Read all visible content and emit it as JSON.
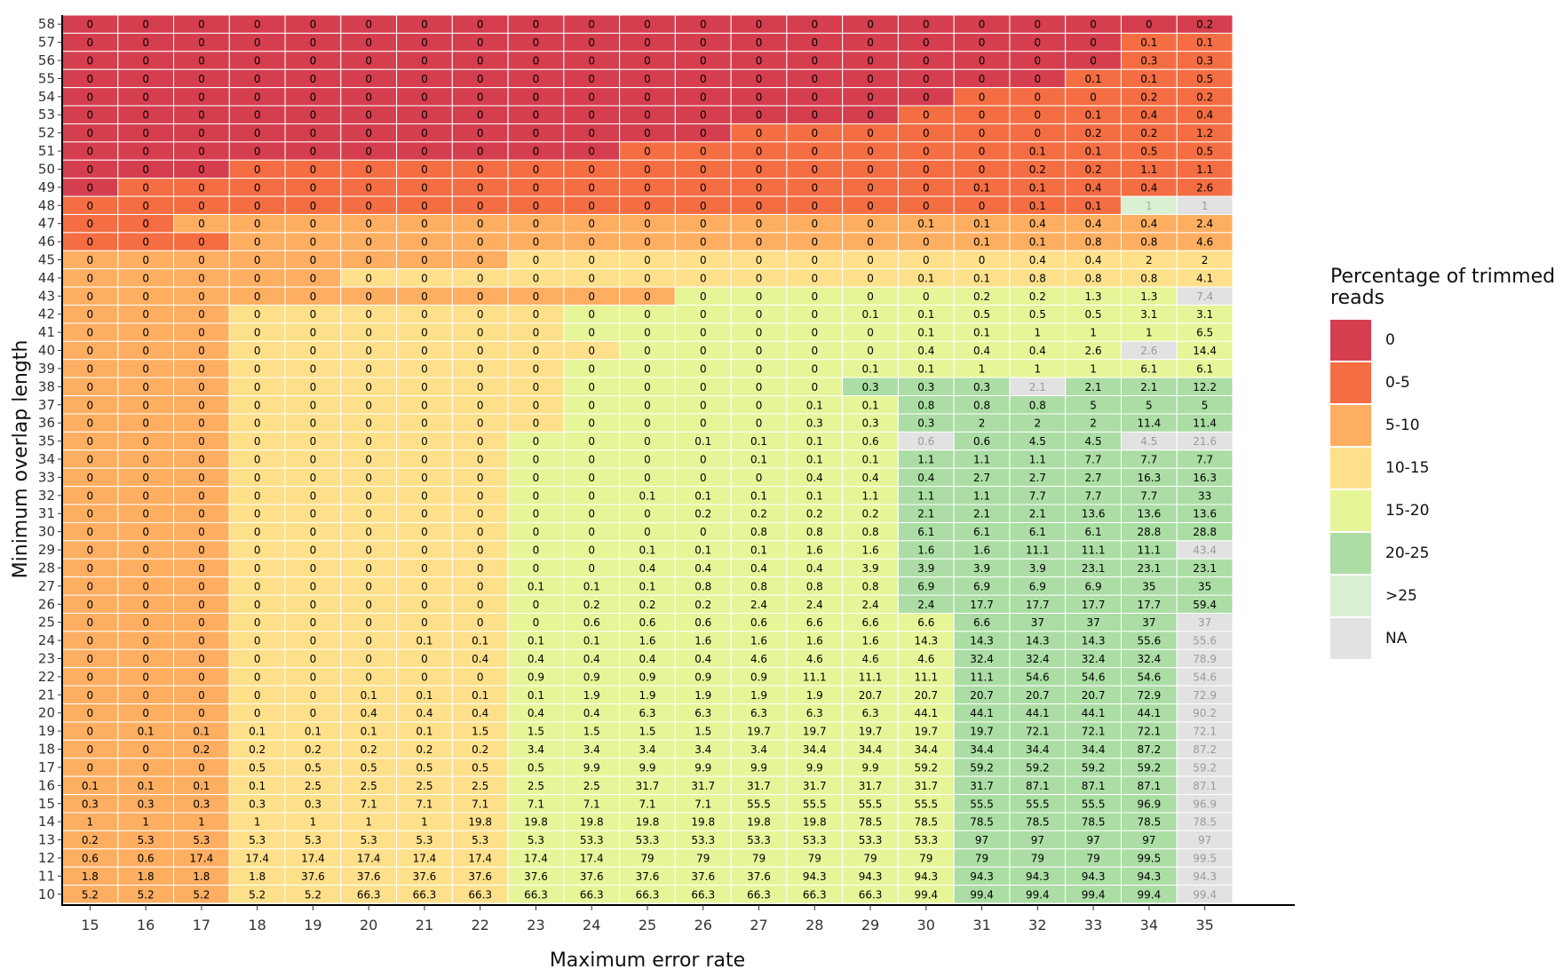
{
  "chart_data": {
    "type": "heatmap",
    "xlabel": "Maximum error rate",
    "ylabel": "Minimum overlap length",
    "x": [
      15,
      16,
      17,
      18,
      19,
      20,
      21,
      22,
      23,
      24,
      25,
      26,
      27,
      28,
      29,
      30,
      31,
      32,
      33,
      34,
      35
    ],
    "y": [
      58,
      57,
      56,
      55,
      54,
      53,
      52,
      51,
      50,
      49,
      48,
      47,
      46,
      45,
      44,
      43,
      42,
      41,
      40,
      39,
      38,
      37,
      36,
      35,
      34,
      33,
      32,
      31,
      30,
      29,
      28,
      27,
      26,
      25,
      24,
      23,
      22,
      21,
      20,
      19,
      18,
      17,
      16,
      15,
      14,
      13,
      12,
      11,
      10
    ],
    "value_grid": [
      [
        "0",
        "0",
        "0",
        "0",
        "0",
        "0",
        "0",
        "0",
        "0",
        "0",
        "0",
        "0",
        "0",
        "0",
        "0",
        "0",
        "0",
        "0",
        "0",
        "0",
        "0.2"
      ],
      [
        "0",
        "0",
        "0",
        "0",
        "0",
        "0",
        "0",
        "0",
        "0",
        "0",
        "0",
        "0",
        "0",
        "0",
        "0",
        "0",
        "0",
        "0",
        "0",
        "0.1",
        "0.1"
      ],
      [
        "0",
        "0",
        "0",
        "0",
        "0",
        "0",
        "0",
        "0",
        "0",
        "0",
        "0",
        "0",
        "0",
        "0",
        "0",
        "0",
        "0",
        "0",
        "0",
        "0.3",
        "0.3"
      ],
      [
        "0",
        "0",
        "0",
        "0",
        "0",
        "0",
        "0",
        "0",
        "0",
        "0",
        "0",
        "0",
        "0",
        "0",
        "0",
        "0",
        "0",
        "0",
        "0.1",
        "0.1",
        "0.5"
      ],
      [
        "0",
        "0",
        "0",
        "0",
        "0",
        "0",
        "0",
        "0",
        "0",
        "0",
        "0",
        "0",
        "0",
        "0",
        "0",
        "0",
        "0",
        "0",
        "0",
        "0.2",
        "0.2"
      ],
      [
        "0",
        "0",
        "0",
        "0",
        "0",
        "0",
        "0",
        "0",
        "0",
        "0",
        "0",
        "0",
        "0",
        "0",
        "0",
        "0",
        "0",
        "0",
        "0.1",
        "0.4",
        "0.4"
      ],
      [
        "0",
        "0",
        "0",
        "0",
        "0",
        "0",
        "0",
        "0",
        "0",
        "0",
        "0",
        "0",
        "0",
        "0",
        "0",
        "0",
        "0",
        "0",
        "0.2",
        "0.2",
        "1.2"
      ],
      [
        "0",
        "0",
        "0",
        "0",
        "0",
        "0",
        "0",
        "0",
        "0",
        "0",
        "0",
        "0",
        "0",
        "0",
        "0",
        "0",
        "0",
        "0.1",
        "0.1",
        "0.5",
        "0.5"
      ],
      [
        "0",
        "0",
        "0",
        "0",
        "0",
        "0",
        "0",
        "0",
        "0",
        "0",
        "0",
        "0",
        "0",
        "0",
        "0",
        "0",
        "0",
        "0.2",
        "0.2",
        "1.1",
        "1.1"
      ],
      [
        "0",
        "0",
        "0",
        "0",
        "0",
        "0",
        "0",
        "0",
        "0",
        "0",
        "0",
        "0",
        "0",
        "0",
        "0",
        "0",
        "0.1",
        "0.1",
        "0.4",
        "0.4",
        "2.6"
      ],
      [
        "0",
        "0",
        "0",
        "0",
        "0",
        "0",
        "0",
        "0",
        "0",
        "0",
        "0",
        "0",
        "0",
        "0",
        "0",
        "0",
        "0",
        "0.1",
        "0.1",
        "1",
        "1"
      ],
      [
        "0",
        "0",
        "0",
        "0",
        "0",
        "0",
        "0",
        "0",
        "0",
        "0",
        "0",
        "0",
        "0",
        "0",
        "0",
        "0.1",
        "0.1",
        "0.4",
        "0.4",
        "0.4",
        "2.4"
      ],
      [
        "0",
        "0",
        "0",
        "0",
        "0",
        "0",
        "0",
        "0",
        "0",
        "0",
        "0",
        "0",
        "0",
        "0",
        "0",
        "0",
        "0.1",
        "0.1",
        "0.8",
        "0.8",
        "4.6"
      ],
      [
        "0",
        "0",
        "0",
        "0",
        "0",
        "0",
        "0",
        "0",
        "0",
        "0",
        "0",
        "0",
        "0",
        "0",
        "0",
        "0",
        "0",
        "0.4",
        "0.4",
        "2",
        "2"
      ],
      [
        "0",
        "0",
        "0",
        "0",
        "0",
        "0",
        "0",
        "0",
        "0",
        "0",
        "0",
        "0",
        "0",
        "0",
        "0",
        "0.1",
        "0.1",
        "0.8",
        "0.8",
        "0.8",
        "4.1"
      ],
      [
        "0",
        "0",
        "0",
        "0",
        "0",
        "0",
        "0",
        "0",
        "0",
        "0",
        "0",
        "0",
        "0",
        "0",
        "0",
        "0",
        "0.2",
        "0.2",
        "1.3",
        "1.3",
        "7.4"
      ],
      [
        "0",
        "0",
        "0",
        "0",
        "0",
        "0",
        "0",
        "0",
        "0",
        "0",
        "0",
        "0",
        "0",
        "0",
        "0.1",
        "0.1",
        "0.5",
        "0.5",
        "0.5",
        "3.1",
        "3.1"
      ],
      [
        "0",
        "0",
        "0",
        "0",
        "0",
        "0",
        "0",
        "0",
        "0",
        "0",
        "0",
        "0",
        "0",
        "0",
        "0",
        "0.1",
        "0.1",
        "1",
        "1",
        "1",
        "6.5"
      ],
      [
        "0",
        "0",
        "0",
        "0",
        "0",
        "0",
        "0",
        "0",
        "0",
        "0",
        "0",
        "0",
        "0",
        "0",
        "0",
        "0.4",
        "0.4",
        "0.4",
        "2.6",
        "2.6",
        "14.4"
      ],
      [
        "0",
        "0",
        "0",
        "0",
        "0",
        "0",
        "0",
        "0",
        "0",
        "0",
        "0",
        "0",
        "0",
        "0",
        "0.1",
        "0.1",
        "1",
        "1",
        "1",
        "6.1",
        "6.1"
      ],
      [
        "0",
        "0",
        "0",
        "0",
        "0",
        "0",
        "0",
        "0",
        "0",
        "0",
        "0",
        "0",
        "0",
        "0",
        "0.3",
        "0.3",
        "0.3",
        "2.1",
        "2.1",
        "2.1",
        "12.2"
      ],
      [
        "0",
        "0",
        "0",
        "0",
        "0",
        "0",
        "0",
        "0",
        "0",
        "0",
        "0",
        "0",
        "0",
        "0.1",
        "0.1",
        "0.8",
        "0.8",
        "0.8",
        "5",
        "5",
        "5"
      ],
      [
        "0",
        "0",
        "0",
        "0",
        "0",
        "0",
        "0",
        "0",
        "0",
        "0",
        "0",
        "0",
        "0",
        "0.3",
        "0.3",
        "0.3",
        "2",
        "2",
        "2",
        "11.4",
        "11.4"
      ],
      [
        "0",
        "0",
        "0",
        "0",
        "0",
        "0",
        "0",
        "0",
        "0",
        "0",
        "0",
        "0.1",
        "0.1",
        "0.1",
        "0.6",
        "0.6",
        "0.6",
        "4.5",
        "4.5",
        "4.5",
        "21.6"
      ],
      [
        "0",
        "0",
        "0",
        "0",
        "0",
        "0",
        "0",
        "0",
        "0",
        "0",
        "0",
        "0",
        "0.1",
        "0.1",
        "0.1",
        "1.1",
        "1.1",
        "1.1",
        "7.7",
        "7.7",
        "7.7"
      ],
      [
        "0",
        "0",
        "0",
        "0",
        "0",
        "0",
        "0",
        "0",
        "0",
        "0",
        "0",
        "0",
        "0",
        "0.4",
        "0.4",
        "0.4",
        "2.7",
        "2.7",
        "2.7",
        "16.3",
        "16.3"
      ],
      [
        "0",
        "0",
        "0",
        "0",
        "0",
        "0",
        "0",
        "0",
        "0",
        "0",
        "0.1",
        "0.1",
        "0.1",
        "0.1",
        "1.1",
        "1.1",
        "1.1",
        "7.7",
        "7.7",
        "7.7",
        "33"
      ],
      [
        "0",
        "0",
        "0",
        "0",
        "0",
        "0",
        "0",
        "0",
        "0",
        "0",
        "0",
        "0.2",
        "0.2",
        "0.2",
        "0.2",
        "2.1",
        "2.1",
        "2.1",
        "13.6",
        "13.6",
        "13.6"
      ],
      [
        "0",
        "0",
        "0",
        "0",
        "0",
        "0",
        "0",
        "0",
        "0",
        "0",
        "0",
        "0",
        "0.8",
        "0.8",
        "0.8",
        "6.1",
        "6.1",
        "6.1",
        "6.1",
        "28.8",
        "28.8"
      ],
      [
        "0",
        "0",
        "0",
        "0",
        "0",
        "0",
        "0",
        "0",
        "0",
        "0",
        "0.1",
        "0.1",
        "0.1",
        "1.6",
        "1.6",
        "1.6",
        "1.6",
        "11.1",
        "11.1",
        "11.1",
        "43.4"
      ],
      [
        "0",
        "0",
        "0",
        "0",
        "0",
        "0",
        "0",
        "0",
        "0",
        "0",
        "0.4",
        "0.4",
        "0.4",
        "0.4",
        "3.9",
        "3.9",
        "3.9",
        "3.9",
        "23.1",
        "23.1",
        "23.1"
      ],
      [
        "0",
        "0",
        "0",
        "0",
        "0",
        "0",
        "0",
        "0",
        "0.1",
        "0.1",
        "0.1",
        "0.8",
        "0.8",
        "0.8",
        "0.8",
        "6.9",
        "6.9",
        "6.9",
        "6.9",
        "35",
        "35"
      ],
      [
        "0",
        "0",
        "0",
        "0",
        "0",
        "0",
        "0",
        "0",
        "0",
        "0.2",
        "0.2",
        "0.2",
        "2.4",
        "2.4",
        "2.4",
        "2.4",
        "17.7",
        "17.7",
        "17.7",
        "17.7",
        "59.4"
      ],
      [
        "0",
        "0",
        "0",
        "0",
        "0",
        "0",
        "0",
        "0",
        "0",
        "0.6",
        "0.6",
        "0.6",
        "0.6",
        "6.6",
        "6.6",
        "6.6",
        "6.6",
        "37",
        "37",
        "37",
        "37"
      ],
      [
        "0",
        "0",
        "0",
        "0",
        "0",
        "0",
        "0.1",
        "0.1",
        "0.1",
        "0.1",
        "1.6",
        "1.6",
        "1.6",
        "1.6",
        "1.6",
        "14.3",
        "14.3",
        "14.3",
        "14.3",
        "55.6",
        "55.6"
      ],
      [
        "0",
        "0",
        "0",
        "0",
        "0",
        "0",
        "0",
        "0.4",
        "0.4",
        "0.4",
        "0.4",
        "0.4",
        "4.6",
        "4.6",
        "4.6",
        "4.6",
        "32.4",
        "32.4",
        "32.4",
        "32.4",
        "78.9"
      ],
      [
        "0",
        "0",
        "0",
        "0",
        "0",
        "0",
        "0",
        "0",
        "0.9",
        "0.9",
        "0.9",
        "0.9",
        "0.9",
        "11.1",
        "11.1",
        "11.1",
        "11.1",
        "54.6",
        "54.6",
        "54.6",
        "54.6"
      ],
      [
        "0",
        "0",
        "0",
        "0",
        "0",
        "0.1",
        "0.1",
        "0.1",
        "0.1",
        "1.9",
        "1.9",
        "1.9",
        "1.9",
        "1.9",
        "20.7",
        "20.7",
        "20.7",
        "20.7",
        "20.7",
        "72.9",
        "72.9"
      ],
      [
        "0",
        "0",
        "0",
        "0",
        "0",
        "0.4",
        "0.4",
        "0.4",
        "0.4",
        "0.4",
        "6.3",
        "6.3",
        "6.3",
        "6.3",
        "6.3",
        "44.1",
        "44.1",
        "44.1",
        "44.1",
        "44.1",
        "90.2"
      ],
      [
        "0",
        "0.1",
        "0.1",
        "0.1",
        "0.1",
        "0.1",
        "0.1",
        "1.5",
        "1.5",
        "1.5",
        "1.5",
        "1.5",
        "19.7",
        "19.7",
        "19.7",
        "19.7",
        "19.7",
        "72.1",
        "72.1",
        "72.1",
        "72.1"
      ],
      [
        "0",
        "0",
        "0.2",
        "0.2",
        "0.2",
        "0.2",
        "0.2",
        "0.2",
        "3.4",
        "3.4",
        "3.4",
        "3.4",
        "3.4",
        "34.4",
        "34.4",
        "34.4",
        "34.4",
        "34.4",
        "34.4",
        "87.2",
        "87.2"
      ],
      [
        "0",
        "0",
        "0",
        "0.5",
        "0.5",
        "0.5",
        "0.5",
        "0.5",
        "0.5",
        "9.9",
        "9.9",
        "9.9",
        "9.9",
        "9.9",
        "9.9",
        "59.2",
        "59.2",
        "59.2",
        "59.2",
        "59.2",
        "59.2"
      ],
      [
        "0.1",
        "0.1",
        "0.1",
        "0.1",
        "2.5",
        "2.5",
        "2.5",
        "2.5",
        "2.5",
        "2.5",
        "31.7",
        "31.7",
        "31.7",
        "31.7",
        "31.7",
        "31.7",
        "31.7",
        "87.1",
        "87.1",
        "87.1",
        "87.1"
      ],
      [
        "0.3",
        "0.3",
        "0.3",
        "0.3",
        "0.3",
        "7.1",
        "7.1",
        "7.1",
        "7.1",
        "7.1",
        "7.1",
        "7.1",
        "55.5",
        "55.5",
        "55.5",
        "55.5",
        "55.5",
        "55.5",
        "55.5",
        "96.9",
        "96.9"
      ],
      [
        "1",
        "1",
        "1",
        "1",
        "1",
        "1",
        "1",
        "19.8",
        "19.8",
        "19.8",
        "19.8",
        "19.8",
        "19.8",
        "19.8",
        "78.5",
        "78.5",
        "78.5",
        "78.5",
        "78.5",
        "78.5",
        "78.5"
      ],
      [
        "0.2",
        "5.3",
        "5.3",
        "5.3",
        "5.3",
        "5.3",
        "5.3",
        "5.3",
        "5.3",
        "53.3",
        "53.3",
        "53.3",
        "53.3",
        "53.3",
        "53.3",
        "53.3",
        "97",
        "97",
        "97",
        "97",
        "97"
      ],
      [
        "0.6",
        "0.6",
        "17.4",
        "17.4",
        "17.4",
        "17.4",
        "17.4",
        "17.4",
        "17.4",
        "17.4",
        "79",
        "79",
        "79",
        "79",
        "79",
        "79",
        "79",
        "79",
        "79",
        "99.5",
        "99.5"
      ],
      [
        "1.8",
        "1.8",
        "1.8",
        "1.8",
        "37.6",
        "37.6",
        "37.6",
        "37.6",
        "37.6",
        "37.6",
        "37.6",
        "37.6",
        "37.6",
        "94.3",
        "94.3",
        "94.3",
        "94.3",
        "94.3",
        "94.3",
        "94.3",
        "94.3"
      ],
      [
        "5.2",
        "5.2",
        "5.2",
        "5.2",
        "5.2",
        "66.3",
        "66.3",
        "66.3",
        "66.3",
        "66.3",
        "66.3",
        "66.3",
        "66.3",
        "66.3",
        "66.3",
        "99.4",
        "99.4",
        "99.4",
        "99.4",
        "99.4",
        "99.4"
      ]
    ],
    "category_grid": [
      "000000000000000000000",
      "000000000000000000011",
      "000000000000000000011",
      "000000000000000000111",
      "000000000000000011111",
      "000000000000000111111",
      "000000000000111111111",
      "000000000011111111111",
      "000111111111111111111",
      "011111111111111111111",
      "11111111111111111117N",
      "112222222222222222222",
      "111222222222222222222",
      "222222223333333333333",
      "222223333333333333333",
      "22222222222444444444N",
      "222333333444444444444",
      "222333333444444444444",
      "2223333333444444444N4",
      "222333333444444444444",
      "22233333344444555N555",
      "222333333444444555555",
      "222333333444444555555",
      "222333334444444N555NN",
      "222333334444444555555",
      "222333334444444555555",
      "222333334444444555555",
      "222333334444444555555",
      "222333334444444555555",
      "22233333444444455555N",
      "222333334444444555555",
      "222333334444444555555",
      "222333334444444555555",
      "22233333444444445555N",
      "22233333444444445555N",
      "22233333444444445555N",
      "22233333444444445555N",
      "22233333444444445555N",
      "22233333444444445555N",
      "22233333444444445555N",
      "22233333444444445555N",
      "22233333444444445555N",
      "22233333444444445555N",
      "22233333444444445555N",
      "22233333444444445555N",
      "22233333444444445555N",
      "22233333444444445555N",
      "22233333444444445555N",
      "22233333444444445555N"
    ],
    "legend": {
      "title": "Percentage of trimmed\nreads",
      "items": [
        {
          "label": "0",
          "color": "#d53e4f"
        },
        {
          "label": "0-5",
          "color": "#f46d43"
        },
        {
          "label": "5-10",
          "color": "#fdae61"
        },
        {
          "label": "10-15",
          "color": "#fee08b"
        },
        {
          "label": "15-20",
          "color": "#e6f598"
        },
        {
          "label": "20-25",
          "color": "#abdda4"
        },
        {
          "label": ">25",
          "color": "#d9f0d3"
        },
        {
          "label": "NA",
          "color": "#e2e2e2"
        }
      ]
    }
  }
}
